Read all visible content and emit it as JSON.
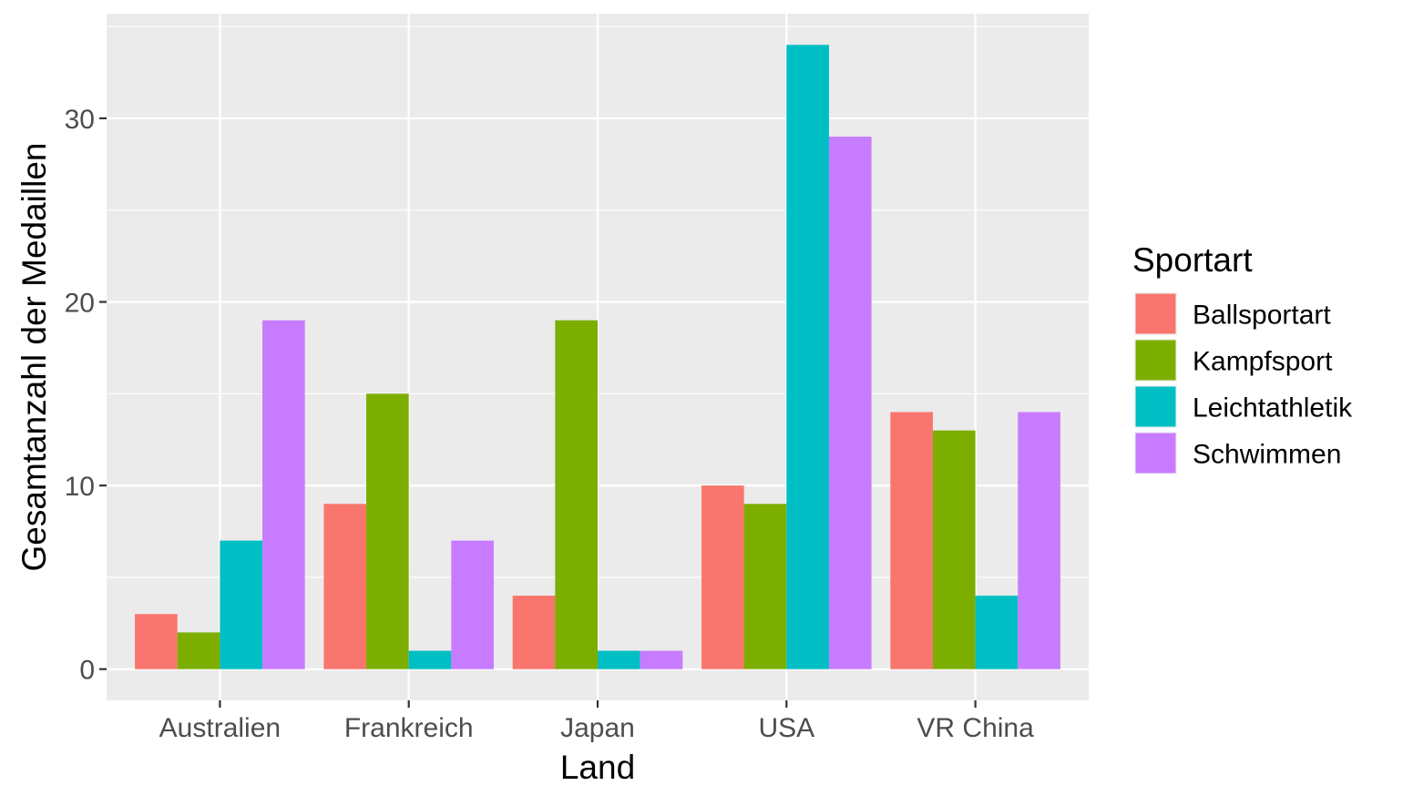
{
  "chart_data": {
    "type": "bar",
    "categories": [
      "Australien",
      "Frankreich",
      "Japan",
      "USA",
      "VR China"
    ],
    "series": [
      {
        "name": "Ballsportart",
        "color": "#F8766D",
        "values": [
          3,
          9,
          4,
          10,
          14
        ]
      },
      {
        "name": "Kampfsport",
        "color": "#7CAE00",
        "values": [
          2,
          15,
          19,
          9,
          13
        ]
      },
      {
        "name": "Leichtathletik",
        "color": "#00BFC4",
        "values": [
          7,
          1,
          1,
          34,
          4
        ]
      },
      {
        "name": "Schwimmen",
        "color": "#C77CFF",
        "values": [
          19,
          7,
          1,
          29,
          14
        ]
      }
    ],
    "xlabel": "Land",
    "ylabel": "Gesamtanzahl der Medaillen",
    "ylim": [
      -1.7,
      35.7
    ],
    "yticks": [
      0,
      10,
      20,
      30
    ],
    "legend_title": "Sportart",
    "legend_position": "right",
    "grid": true,
    "panel_background": "#EBEBEB",
    "grid_color": "#FFFFFF"
  }
}
